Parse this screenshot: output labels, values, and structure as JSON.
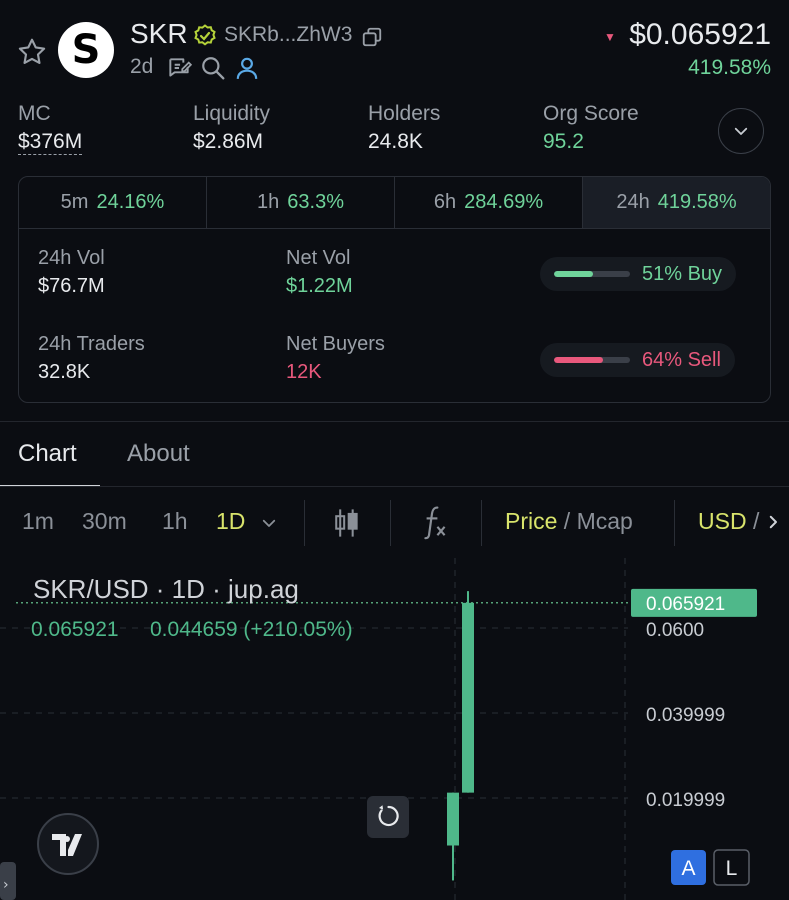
{
  "token": {
    "symbol": "SKR",
    "address_short": "SKRb...ZhW3",
    "age": "2d",
    "logo_letter": "S",
    "price": "$0.065921",
    "price_change": "419.58%"
  },
  "stats": [
    {
      "label": "MC",
      "value": "$376M"
    },
    {
      "label": "Liquidity",
      "value": "$2.86M"
    },
    {
      "label": "Holders",
      "value": "24.8K"
    },
    {
      "label": "Org Score",
      "value": "95.2"
    }
  ],
  "periods": [
    {
      "key": "5m",
      "value": "24.16%"
    },
    {
      "key": "1h",
      "value": "63.3%"
    },
    {
      "key": "6h",
      "value": "284.69%"
    },
    {
      "key": "24h",
      "value": "419.58%"
    }
  ],
  "period_stats": {
    "vol_label": "24h Vol",
    "vol_value": "$76.7M",
    "netvol_label": "Net Vol",
    "netvol_value": "$1.22M",
    "buy_label": "51% Buy",
    "buy_fraction": 0.51,
    "traders_label": "24h Traders",
    "traders_value": "32.8K",
    "netbuyers_label": "Net Buyers",
    "netbuyers_value": "12K",
    "sell_label": "64% Sell",
    "sell_fraction": 0.64
  },
  "tabs": {
    "chart": "Chart",
    "about": "About"
  },
  "toolbar": {
    "intervals": [
      "1m",
      "30m",
      "1h"
    ],
    "selected_interval": "1D",
    "price": "Price",
    "slash": " / ",
    "mcap": "Mcap",
    "currency": "USD",
    "currency_more": " /"
  },
  "chart": {
    "title": "SKR/USD · 1D · jup.ag",
    "legend_close": "0.065921",
    "legend_change": "0.044659 (+210.05%)",
    "current_price_label": "0.065921",
    "y_ticks": [
      "0.0600",
      "0.039999",
      "0.019999"
    ],
    "scale_auto": "A",
    "scale_log": "L"
  },
  "chart_data": {
    "type": "candlestick",
    "y_ticks": [
      0.06,
      0.039999,
      0.019999
    ],
    "current_price": 0.065921,
    "candles": [
      {
        "open": 0.02126,
        "close": 0.00882,
        "high": 0.02126,
        "low": 0.0006,
        "direction": "up-colored"
      },
      {
        "open": 0.02126,
        "close": 0.065921,
        "high": 0.06868,
        "low": 0.02126,
        "direction": "up"
      }
    ]
  },
  "colors": {
    "up": "#4fb88a",
    "down": "#e8587c",
    "accent": "#d8e36b"
  }
}
